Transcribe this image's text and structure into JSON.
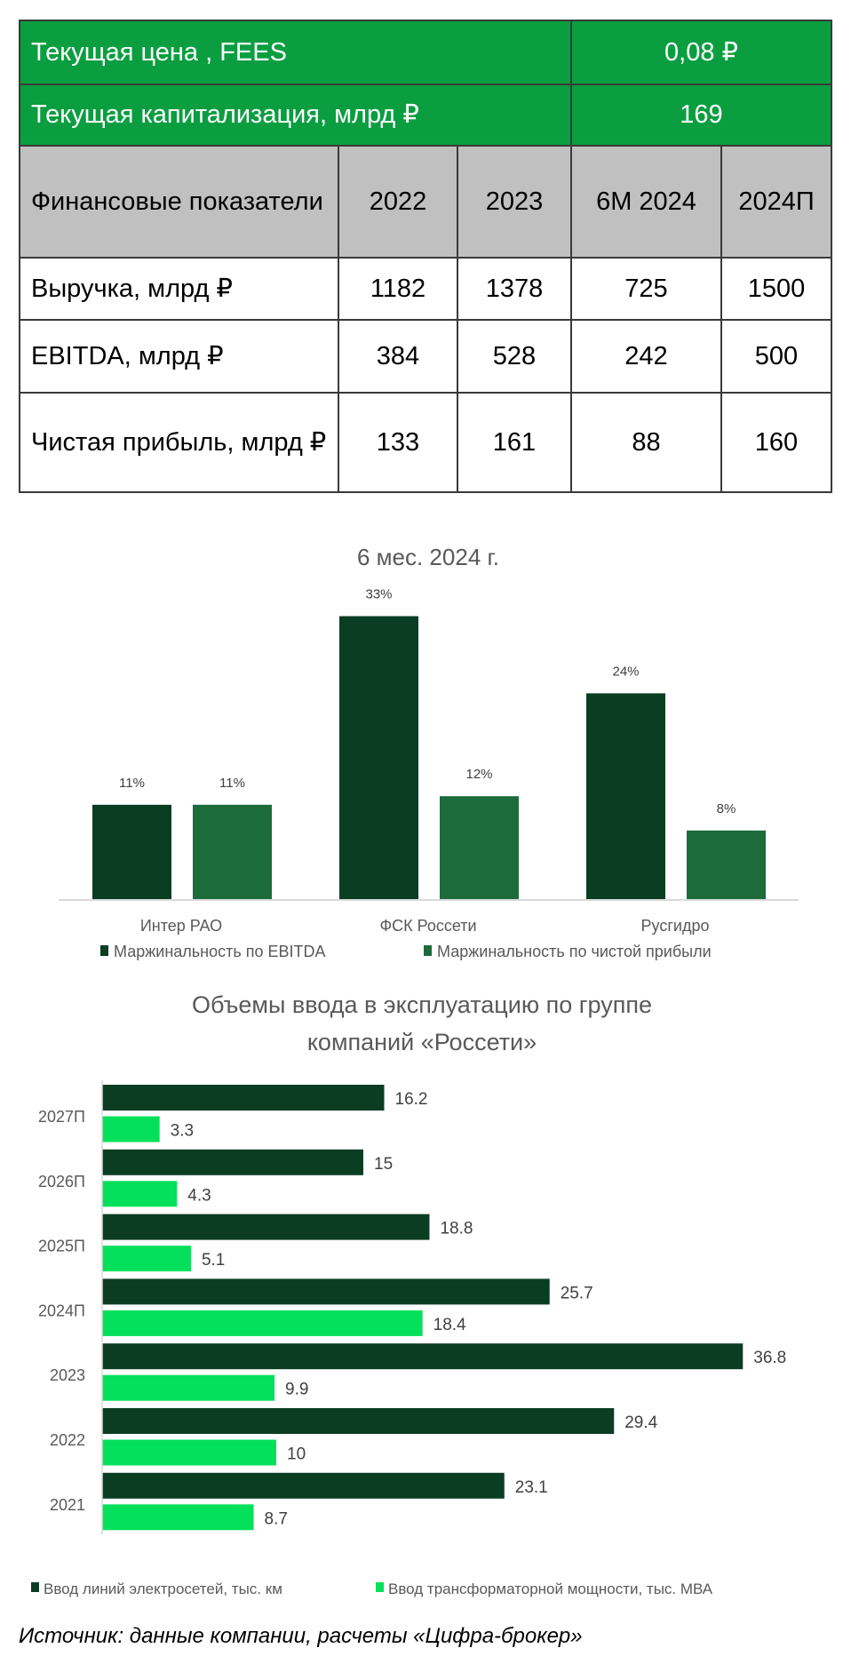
{
  "table": {
    "price_label": "Текущая цена , FEES",
    "price_value": "0,08 ₽",
    "cap_label": "Текущая капитализация, млрд ₽",
    "cap_value": "169",
    "header": [
      "Финансовые показатели",
      "2022",
      "2023",
      "6М 2024",
      "2024П"
    ],
    "rows": [
      [
        "Выручка, млрд ₽",
        "1182",
        "1378",
        "725",
        "1500"
      ],
      [
        "EBITDA, млрд ₽",
        "384",
        "528",
        "242",
        "500"
      ],
      [
        "Чистая прибыль, млрд ₽",
        "133",
        "161",
        "88",
        "160"
      ]
    ]
  },
  "chart_data": [
    {
      "type": "bar",
      "title": "6 мес. 2024 г.",
      "categories": [
        "Интер РАО",
        "ФСК Россети",
        "Русгидро"
      ],
      "series": [
        {
          "name": "Маржинальность по EBITDA",
          "values": [
            11,
            33,
            24
          ],
          "labels": [
            "11%",
            "33%",
            "24%"
          ],
          "color": "#0b3d23"
        },
        {
          "name": "Маржинальность по чистой прибыли",
          "values": [
            11,
            12,
            8
          ],
          "labels": [
            "11%",
            "12%",
            "8%"
          ],
          "color": "#1c6b3b"
        }
      ],
      "unit": "%",
      "legend": "bottom",
      "grid": false
    },
    {
      "type": "bar-horizontal",
      "title": "Объемы ввода в эксплуатацию по группе компаний «Россети»",
      "title_lines": [
        "Объемы  ввода  в эксплуатацию  по группе",
        "компаний «Россети»"
      ],
      "categories": [
        "2027П",
        "2026П",
        "2025П",
        "2024П",
        "2023",
        "2022",
        "2021"
      ],
      "series": [
        {
          "name": "Ввод линий  электросетей, тыс. км",
          "values": [
            16.2,
            15,
            18.8,
            25.7,
            36.8,
            29.4,
            23.1
          ],
          "labels": [
            "16.2",
            "15",
            "18.8",
            "25.7",
            "36.8",
            "29.4",
            "23.1"
          ],
          "color": "#0b3d23"
        },
        {
          "name": "Ввод трансформаторной  мощности, тыс. МВА",
          "values": [
            3.3,
            4.3,
            5.1,
            18.4,
            9.9,
            10,
            8.7
          ],
          "labels": [
            "3.3",
            "4.3",
            "5.1",
            "18.4",
            "9.9",
            "10",
            "8.7"
          ],
          "color": "#05e05a"
        }
      ],
      "legend": "bottom",
      "grid": false
    }
  ],
  "source": "Источник: данные компании, расчеты «Цифра-брокер»"
}
